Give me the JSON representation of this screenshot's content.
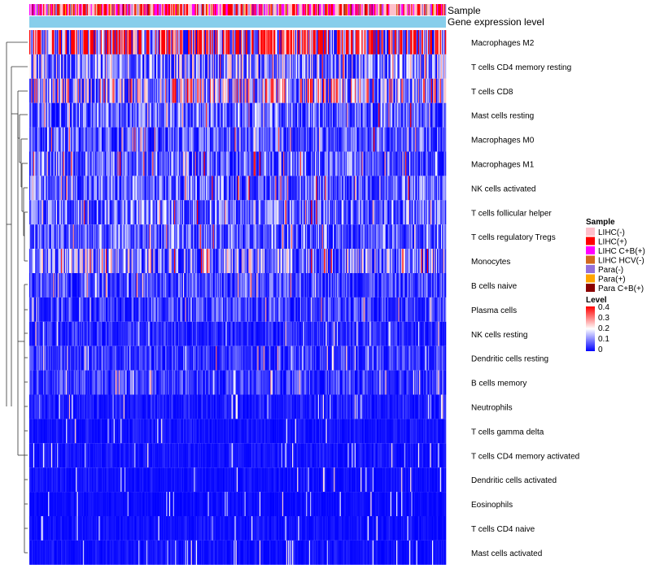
{
  "chart_data": {
    "type": "heatmap",
    "annotation_tracks": [
      "Sample",
      "Gene expression level"
    ],
    "rows": [
      {
        "name": "Macrophages M2",
        "level": 0.3
      },
      {
        "name": "T cells CD4 memory resting",
        "level": 0.1
      },
      {
        "name": "T cells CD8",
        "level": 0.14
      },
      {
        "name": "Mast cells resting",
        "level": 0.07
      },
      {
        "name": "Macrophages M0",
        "level": 0.06
      },
      {
        "name": "Macrophages M1",
        "level": 0.07
      },
      {
        "name": "NK cells activated",
        "level": 0.07
      },
      {
        "name": "T cells follicular helper",
        "level": 0.08
      },
      {
        "name": "T cells regulatory  Tregs",
        "level": 0.07
      },
      {
        "name": "Monocytes",
        "level": 0.1
      },
      {
        "name": "B cells naive",
        "level": 0.05
      },
      {
        "name": "Plasma cells",
        "level": 0.05
      },
      {
        "name": "NK cells resting",
        "level": 0.03
      },
      {
        "name": "Dendritic cells resting",
        "level": 0.04
      },
      {
        "name": "B cells memory",
        "level": 0.04
      },
      {
        "name": "Neutrophils",
        "level": 0.02
      },
      {
        "name": "T cells gamma delta",
        "level": 0.015
      },
      {
        "name": "T cells CD4 memory activated",
        "level": 0.015
      },
      {
        "name": "Dendritic cells activated",
        "level": 0.012
      },
      {
        "name": "Eosinophils",
        "level": 0.008
      },
      {
        "name": "T cells CD4 naive",
        "level": 0.012
      },
      {
        "name": "Mast cells activated",
        "level": 0.012
      }
    ],
    "legend_sample": {
      "title": "Sample",
      "items": [
        {
          "label": "LIHC(-)",
          "color": "#ffc0cb"
        },
        {
          "label": "LIHC(+)",
          "color": "#ff0000"
        },
        {
          "label": "LIHC C+B(+)",
          "color": "#ff00ff"
        },
        {
          "label": "LIHC HCV(-)",
          "color": "#d2691e"
        },
        {
          "label": "Para(-)",
          "color": "#9370db"
        },
        {
          "label": "Para(+)",
          "color": "#ffa500"
        },
        {
          "label": "Para C+B(+)",
          "color": "#8b0000"
        }
      ]
    },
    "legend_level": {
      "title": "Level",
      "ticks": [
        "0.4",
        "0.3",
        "0.2",
        "0.1",
        "0"
      ],
      "range": [
        0,
        0.4
      ],
      "colors": [
        "#0000ff",
        "#ffffff",
        "#ff0000"
      ]
    },
    "gene_expression_track_color": "#87ceeb",
    "n_samples": 420
  }
}
